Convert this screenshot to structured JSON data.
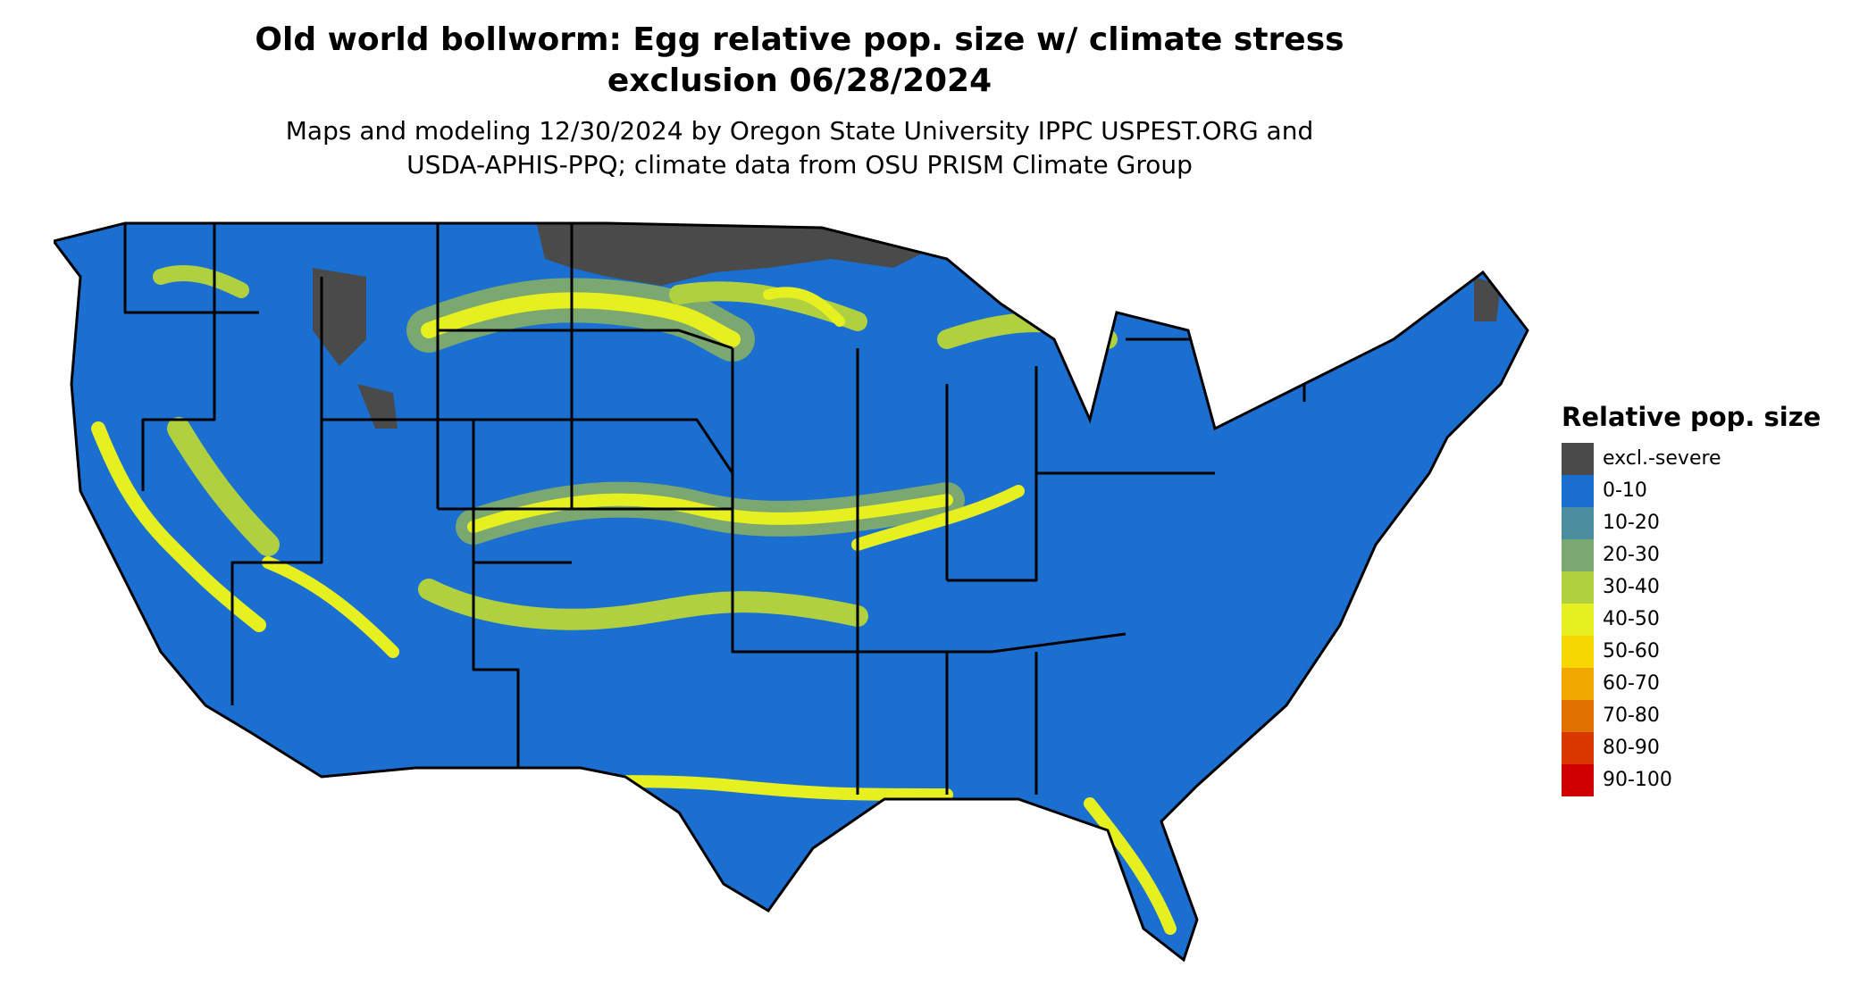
{
  "title_lines": [
    "Old world bollworm: Egg relative pop. size w/ climate stress",
    "exclusion 06/28/2024"
  ],
  "subtitle_lines": [
    "Maps and modeling 12/30/2024 by Oregon State University IPPC USPEST.ORG and",
    "USDA-APHIS-PPQ; climate data from OSU PRISM Climate Group"
  ],
  "legend": {
    "title": "Relative pop. size",
    "items": [
      {
        "label": "excl.-severe",
        "color": "#4a4a4a"
      },
      {
        "label": "0-10",
        "color": "#1a6fd0"
      },
      {
        "label": "10-20",
        "color": "#4a8ea0"
      },
      {
        "label": "20-30",
        "color": "#7aa870"
      },
      {
        "label": "30-40",
        "color": "#b0d040"
      },
      {
        "label": "40-50",
        "color": "#e6f020"
      },
      {
        "label": "50-60",
        "color": "#f6d800"
      },
      {
        "label": "60-70",
        "color": "#f0a800"
      },
      {
        "label": "70-80",
        "color": "#e07000"
      },
      {
        "label": "80-90",
        "color": "#d83800"
      },
      {
        "label": "90-100",
        "color": "#d00000"
      }
    ]
  },
  "map": {
    "region": "contiguous-united-states",
    "base_color": "#1a6fd0",
    "border_color": "#000000",
    "excluded_color": "#4a4a4a",
    "band_colors": [
      "#e6f020",
      "#b0d040",
      "#7aa870"
    ]
  }
}
